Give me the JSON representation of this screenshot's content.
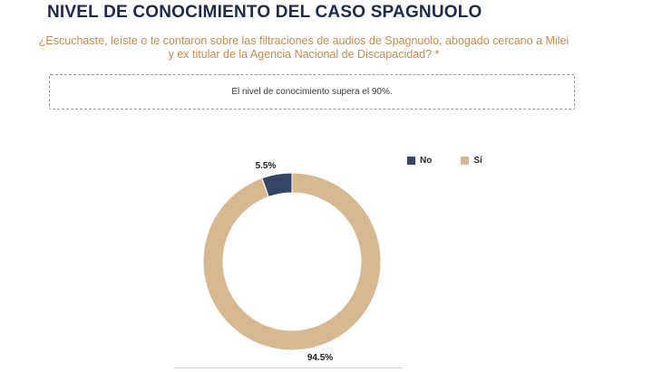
{
  "header": {
    "title": "NIVEL DE CONOCIMIENTO DEL CASO SPAGNUOLO",
    "question": "¿Escuchaste, leíste o te contaron sobre las filtraciones de audios de Spagnuolo, abogado cercano a Milei y ex titular de la Agencia Nacional de Discapacidad? *"
  },
  "note": {
    "text": "El nivel de conocimiento supera el 90%."
  },
  "colors": {
    "no": "#344566",
    "si": "#d6b991",
    "title": "#1e2a4a",
    "question": "#c88a4e"
  },
  "chart_data": {
    "type": "pie",
    "subtype": "donut",
    "title": "",
    "categories": [
      "No",
      "Sí"
    ],
    "values": [
      5.5,
      94.5
    ],
    "data_labels": [
      "5.5%",
      "94.5%"
    ],
    "colors": [
      "#344566",
      "#d6b991"
    ],
    "legend": "top-right"
  }
}
